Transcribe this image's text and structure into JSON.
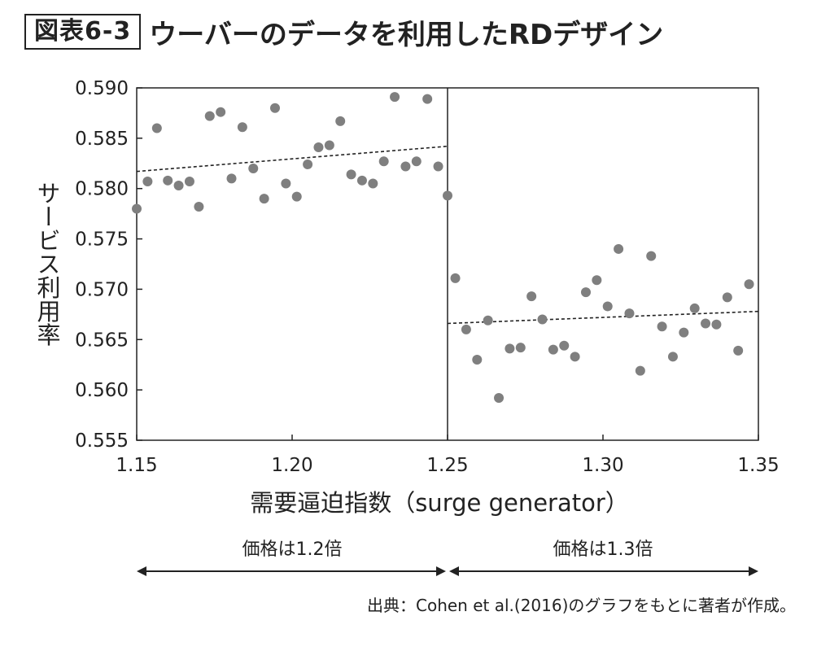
{
  "header": {
    "figure_number": "図表6-3",
    "title": "ウーバーのデータを利用したRDデザイン"
  },
  "colors": {
    "points": "#7f7f7f",
    "axis": "#222222",
    "trend": "#222222"
  },
  "chart_data": {
    "type": "scatter",
    "xlabel": "需要逼迫指数（surge generator）",
    "ylabel": "サービス利用率",
    "xlim": [
      1.15,
      1.35
    ],
    "ylim": [
      0.555,
      0.59
    ],
    "x_ticks": [
      "1.15",
      "1.20",
      "1.25",
      "1.30",
      "1.35"
    ],
    "y_ticks": [
      "0.555",
      "0.560",
      "0.565",
      "0.570",
      "0.575",
      "0.580",
      "0.585",
      "0.590"
    ],
    "grid": false,
    "cutoff_x": 1.25,
    "series": [
      {
        "points": [
          [
            1.15,
            0.578
          ],
          [
            1.1535,
            0.5807
          ],
          [
            1.1565,
            0.586
          ],
          [
            1.16,
            0.5808
          ],
          [
            1.1635,
            0.5803
          ],
          [
            1.167,
            0.5807
          ],
          [
            1.17,
            0.5782
          ],
          [
            1.1735,
            0.5872
          ],
          [
            1.177,
            0.5876
          ],
          [
            1.1805,
            0.581
          ],
          [
            1.184,
            0.5861
          ],
          [
            1.1875,
            0.582
          ],
          [
            1.191,
            0.579
          ],
          [
            1.1945,
            0.588
          ],
          [
            1.198,
            0.5805
          ],
          [
            1.2015,
            0.5792
          ],
          [
            1.205,
            0.5824
          ],
          [
            1.2085,
            0.5841
          ],
          [
            1.212,
            0.5843
          ],
          [
            1.2155,
            0.5867
          ],
          [
            1.219,
            0.5814
          ],
          [
            1.2225,
            0.5808
          ],
          [
            1.226,
            0.5805
          ],
          [
            1.2295,
            0.5827
          ],
          [
            1.233,
            0.5891
          ],
          [
            1.2365,
            0.5822
          ],
          [
            1.24,
            0.5827
          ],
          [
            1.2435,
            0.5889
          ],
          [
            1.247,
            0.5822
          ],
          [
            1.25,
            0.5793
          ]
        ],
        "trend": [
          [
            1.15,
            0.5817
          ],
          [
            1.25,
            0.5842
          ]
        ]
      },
      {
        "points": [
          [
            1.2525,
            0.5711
          ],
          [
            1.256,
            0.566
          ],
          [
            1.2595,
            0.563
          ],
          [
            1.263,
            0.5669
          ],
          [
            1.2665,
            0.5592
          ],
          [
            1.27,
            0.5641
          ],
          [
            1.2735,
            0.5642
          ],
          [
            1.277,
            0.5693
          ],
          [
            1.2805,
            0.567
          ],
          [
            1.284,
            0.564
          ],
          [
            1.2875,
            0.5644
          ],
          [
            1.291,
            0.5633
          ],
          [
            1.2945,
            0.5697
          ],
          [
            1.298,
            0.5709
          ],
          [
            1.3015,
            0.5683
          ],
          [
            1.305,
            0.574
          ],
          [
            1.3085,
            0.5676
          ],
          [
            1.312,
            0.5619
          ],
          [
            1.3155,
            0.5733
          ],
          [
            1.319,
            0.5663
          ],
          [
            1.3225,
            0.5633
          ],
          [
            1.326,
            0.5657
          ],
          [
            1.3295,
            0.5681
          ],
          [
            1.333,
            0.5666
          ],
          [
            1.3365,
            0.5665
          ],
          [
            1.34,
            0.5692
          ],
          [
            1.3435,
            0.5639
          ],
          [
            1.347,
            0.5705
          ]
        ],
        "trend": [
          [
            1.25,
            0.5666
          ],
          [
            1.35,
            0.5678
          ]
        ]
      }
    ],
    "annotations": {
      "left_range_label": "価格は1.2倍",
      "right_range_label": "価格は1.3倍"
    }
  },
  "source": "出典：Cohen et al.(2016)のグラフをもとに著者が作成。"
}
